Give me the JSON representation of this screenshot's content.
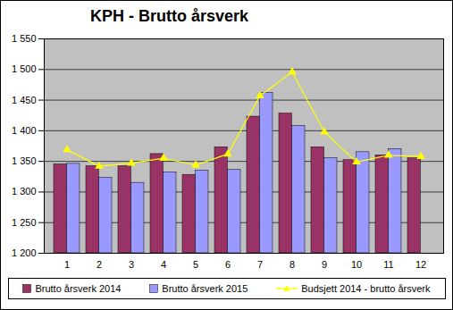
{
  "chart_data": {
    "type": "bar",
    "title": "KPH - Brutto årsverk",
    "categories": [
      "1",
      "2",
      "3",
      "4",
      "5",
      "6",
      "7",
      "8",
      "9",
      "10",
      "11",
      "12"
    ],
    "series": [
      {
        "name": "Brutto årsverk 2014",
        "type": "bar",
        "color": "#993366",
        "values": [
          1345,
          1342,
          1342,
          1362,
          1328,
          1373,
          1423,
          1428,
          1373,
          1352,
          1360,
          1355
        ]
      },
      {
        "name": "Brutto årsverk 2015",
        "type": "bar",
        "color": "#9999ff",
        "values": [
          1346,
          1323,
          1315,
          1332,
          1335,
          1336,
          1462,
          1408,
          1355,
          1365,
          1370,
          null
        ]
      },
      {
        "name": "Budsjett 2014 - brutto årsverk",
        "type": "line",
        "color": "#ffff00",
        "marker": "triangle",
        "values": [
          1369,
          1342,
          1347,
          1355,
          1344,
          1362,
          1457,
          1496,
          1398,
          1349,
          1360,
          1358
        ]
      }
    ],
    "ylim": [
      1200,
      1550
    ],
    "yticks": [
      {
        "value": 1200,
        "label": "1 200"
      },
      {
        "value": 1250,
        "label": "1 250"
      },
      {
        "value": 1300,
        "label": "1 300"
      },
      {
        "value": 1350,
        "label": "1 350"
      },
      {
        "value": 1400,
        "label": "1 400"
      },
      {
        "value": 1450,
        "label": "1 450"
      },
      {
        "value": 1500,
        "label": "1 500"
      },
      {
        "value": 1550,
        "label": "1 550"
      }
    ],
    "grid": true,
    "legend": "bottom"
  }
}
